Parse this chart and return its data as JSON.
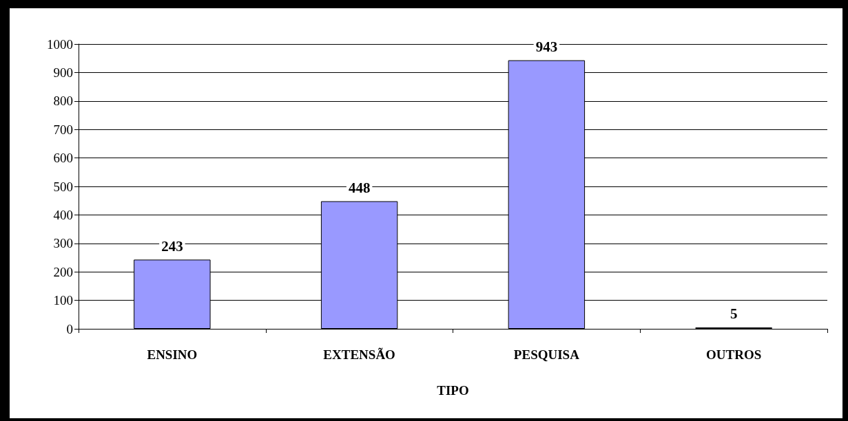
{
  "chart_data": {
    "type": "bar",
    "xlabel": "TIPO",
    "categories": [
      "ENSINO",
      "EXTENSÃO",
      "PESQUISA",
      "OUTROS"
    ],
    "values": [
      243,
      448,
      943,
      5
    ],
    "color": "#9999ff",
    "ylim": [
      0,
      1000
    ],
    "yticks": [
      0,
      100,
      200,
      300,
      400,
      500,
      600,
      700,
      800,
      900,
      1000
    ],
    "grid": "y",
    "data_labels": true
  }
}
